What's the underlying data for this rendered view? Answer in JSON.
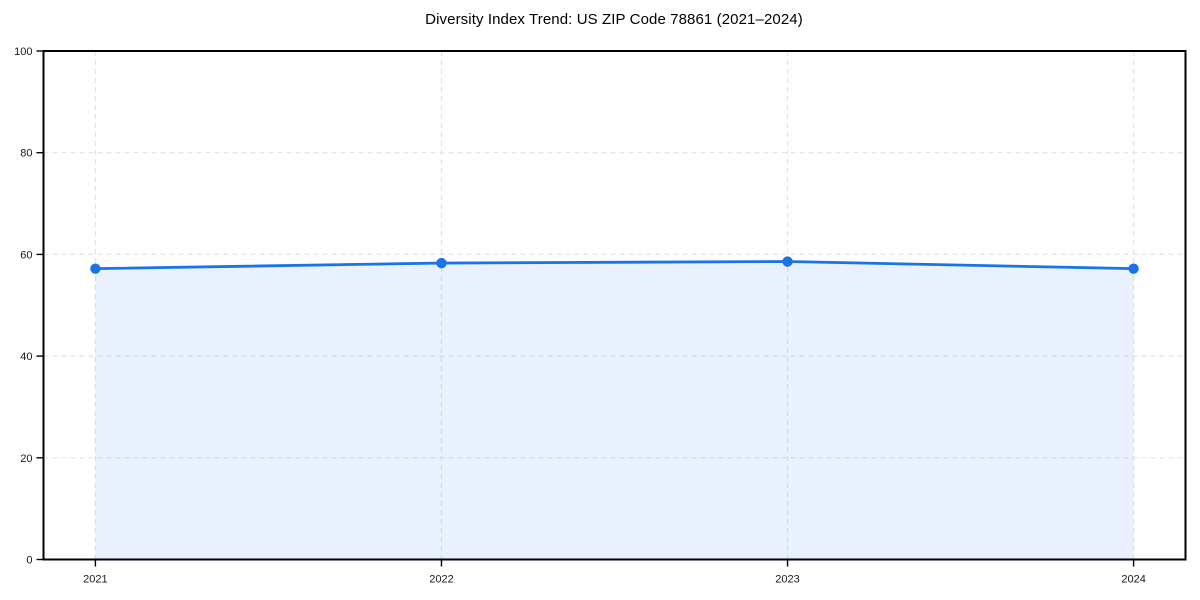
{
  "chart_data": {
    "type": "area",
    "title": "Diversity Index Trend: US ZIP Code 78861 (2021–2024)",
    "x": [
      2021,
      2022,
      2023,
      2024
    ],
    "xtick_labels": [
      "2021",
      "2022",
      "2023",
      "2024"
    ],
    "series": [
      {
        "name": "Diversity Index",
        "values": [
          57.2,
          58.3,
          58.6,
          57.2
        ]
      }
    ],
    "xlabel": "",
    "ylabel": "",
    "xlim": [
      2020.85,
      2024.15
    ],
    "ylim": [
      0,
      100
    ],
    "yticks": [
      0,
      20,
      40,
      60,
      80,
      100
    ],
    "grid": "dashed",
    "legend": "none",
    "colors": {
      "line": "#1a73e8",
      "marker": "#1a73e8",
      "fill": "rgba(26,115,232,0.10)",
      "grid": "#e3e3e3",
      "spine": "#000000",
      "tick": "#000000",
      "tick_label": "#1a1a1a",
      "title": "#000000",
      "background": "#ffffff"
    }
  }
}
